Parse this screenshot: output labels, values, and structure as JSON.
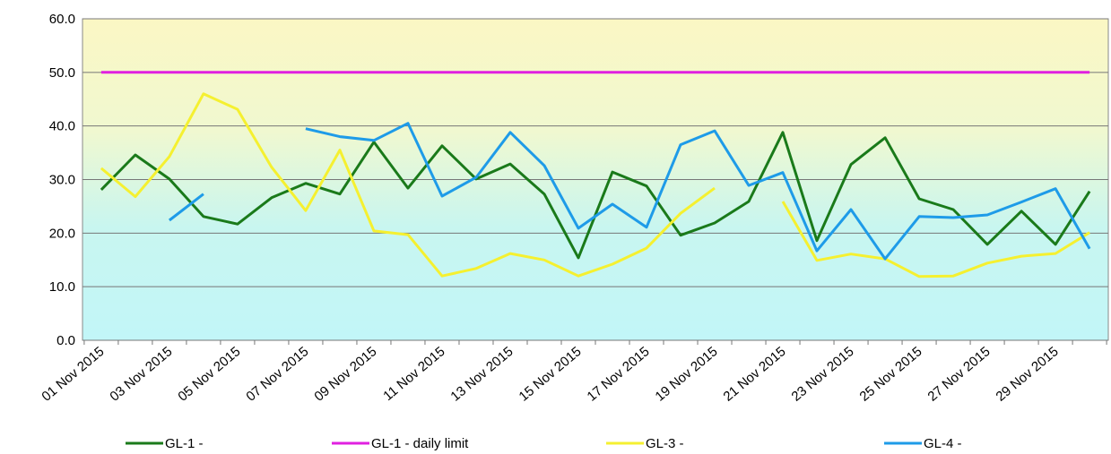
{
  "chart_data": {
    "type": "line",
    "categories": [
      "01 Nov 2015",
      null,
      "03 Nov 2015",
      null,
      "05 Nov 2015",
      null,
      "07 Nov 2015",
      null,
      "09 Nov 2015",
      null,
      "11 Nov 2015",
      null,
      "13 Nov 2015",
      null,
      "15 Nov 2015",
      null,
      "17 Nov 2015",
      null,
      "19 Nov 2015",
      null,
      "21 Nov 2015",
      null,
      "23 Nov 2015",
      null,
      "25 Nov 2015",
      null,
      "27 Nov 2015",
      null,
      "29 Nov 2015",
      null
    ],
    "series": [
      {
        "name": "GL-1 -",
        "color": "#1a7a1a",
        "values": [
          28.1,
          34.6,
          30.1,
          23.1,
          21.7,
          26.6,
          29.3,
          27.3,
          37.0,
          28.4,
          36.3,
          30.1,
          32.9,
          27.3,
          15.4,
          31.4,
          28.8,
          19.6,
          21.9,
          25.9,
          38.8,
          18.6,
          32.8,
          37.8,
          26.4,
          24.4,
          17.9,
          24.1,
          17.9,
          27.8
        ]
      },
      {
        "name": "GL-1 - daily limit",
        "color": "#e020e0",
        "values": [
          50,
          50,
          50,
          50,
          50,
          50,
          50,
          50,
          50,
          50,
          50,
          50,
          50,
          50,
          50,
          50,
          50,
          50,
          50,
          50,
          50,
          50,
          50,
          50,
          50,
          50,
          50,
          50,
          50,
          50
        ]
      },
      {
        "name": "GL-3 -",
        "color": "#f5f030",
        "values": [
          32.1,
          26.8,
          34.3,
          46.0,
          43.1,
          32.3,
          24.2,
          35.5,
          20.4,
          19.7,
          12.0,
          13.4,
          16.2,
          15.0,
          12.0,
          14.2,
          17.2,
          23.7,
          28.4,
          null,
          25.9,
          14.9,
          16.1,
          15.2,
          11.9,
          12.0,
          14.4,
          15.7,
          16.2,
          20.1
        ]
      },
      {
        "name": "GL-4 -",
        "color": "#1e9be8",
        "values": [
          null,
          null,
          22.4,
          27.3,
          null,
          null,
          39.5,
          38.0,
          37.3,
          40.5,
          26.9,
          30.4,
          38.8,
          32.6,
          20.9,
          25.4,
          21.1,
          36.5,
          39.1,
          28.9,
          31.3,
          16.7,
          24.4,
          15.2,
          23.1,
          22.9,
          23.4,
          25.8,
          28.3,
          17.1
        ]
      }
    ],
    "ylim": [
      0,
      60
    ],
    "yticks": [
      {
        "value": 0,
        "label": "0.0"
      },
      {
        "value": 10,
        "label": "10.0"
      },
      {
        "value": 20,
        "label": "20.0"
      },
      {
        "value": 30,
        "label": "30.0"
      },
      {
        "value": 40,
        "label": "40.0"
      },
      {
        "value": 50,
        "label": "50.0"
      },
      {
        "value": 60,
        "label": "60.0"
      }
    ],
    "grid": true,
    "legend": "bottom"
  }
}
